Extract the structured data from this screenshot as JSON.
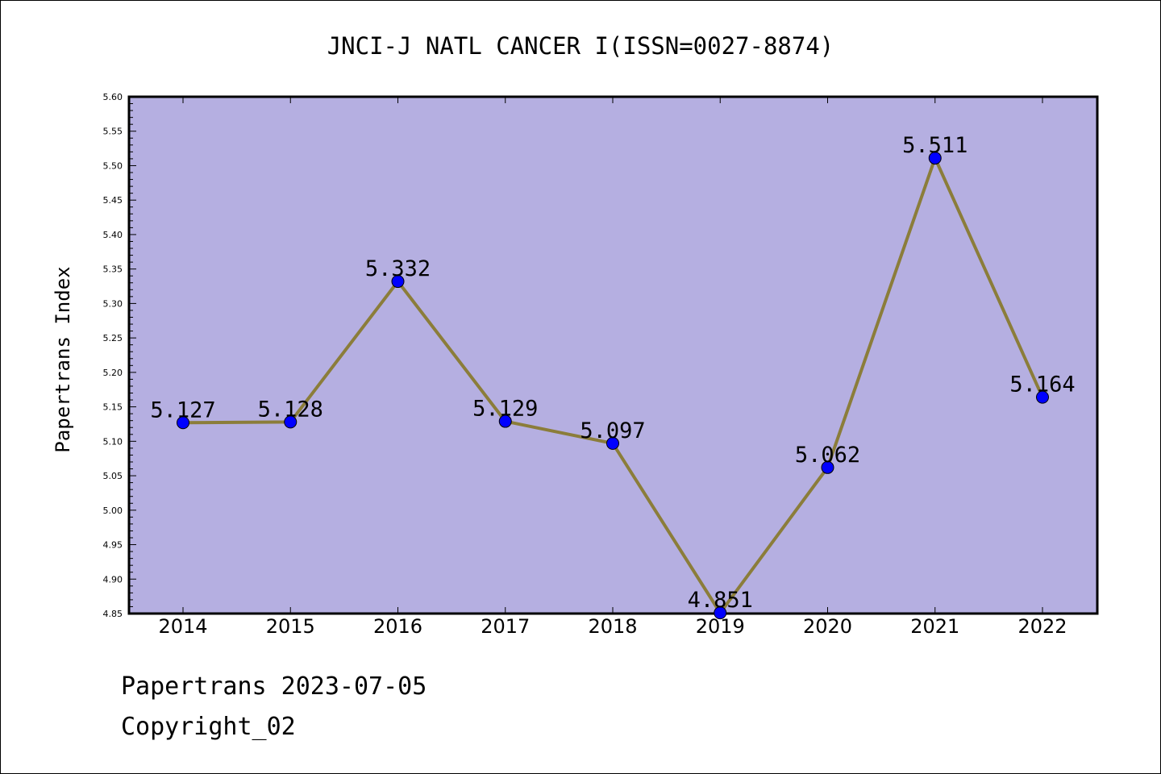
{
  "chart_data": {
    "type": "line",
    "title": "JNCI-J NATL CANCER I(ISSN=0027-8874)",
    "xlabel": "",
    "ylabel": "Papertrans Index",
    "x": [
      "2014",
      "2015",
      "2016",
      "2017",
      "2018",
      "2019",
      "2020",
      "2021",
      "2022"
    ],
    "values": [
      5.127,
      5.128,
      5.332,
      5.129,
      5.097,
      4.851,
      5.062,
      5.511,
      5.164
    ],
    "data_labels": [
      "5.127",
      "5.128",
      "5.332",
      "5.129",
      "5.097",
      "4.851",
      "5.062",
      "5.511",
      "5.164"
    ],
    "ylim": [
      4.85,
      5.6
    ],
    "yticks": [
      "4.85",
      "4.90",
      "4.95",
      "5.00",
      "5.05",
      "5.10",
      "5.15",
      "5.20",
      "5.25",
      "5.30",
      "5.35",
      "5.40",
      "5.45",
      "5.50",
      "5.55",
      "5.60"
    ],
    "grid": false,
    "legend": "none",
    "colors": {
      "plot_bg": "#b5afe1",
      "line": "#8b7d3a",
      "marker": "#0000ff"
    }
  },
  "footer": {
    "line1": "Papertrans 2023-07-05",
    "line2": "Copyright_02"
  }
}
